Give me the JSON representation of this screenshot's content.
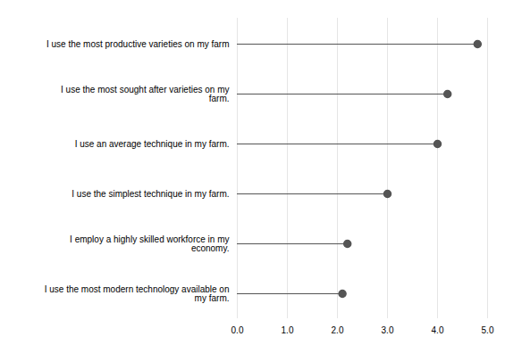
{
  "chart_data": {
    "type": "lollipop",
    "orientation": "horizontal",
    "categories": [
      "I use the most modern technology available on\nmy farm.",
      "I employ a highly skilled workforce in my\neconomy.",
      "I use the simplest technique in my farm.",
      "I use an average technique in my farm.",
      "I use the most sought after varieties on my\nfarm.",
      "I use the most productive varieties on my farm"
    ],
    "values": [
      2.1,
      2.2,
      3.0,
      4.0,
      4.2,
      4.8
    ],
    "color": "#555555",
    "xlim": [
      0,
      5
    ],
    "xticks": [
      0,
      1,
      2,
      3,
      4,
      5
    ],
    "grid": true
  }
}
